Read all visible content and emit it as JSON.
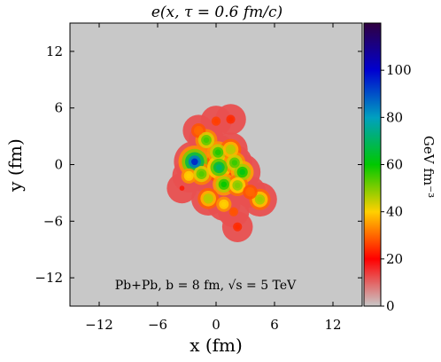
{
  "chart_data": {
    "type": "heatmap",
    "title": "e(x, τ = 0.6 fm/c)",
    "xlabel": "x (fm)",
    "ylabel": "y (fm)",
    "xlim": [
      -15,
      15
    ],
    "ylim": [
      -15,
      15
    ],
    "x_ticks": [
      "−12",
      "−6",
      "0",
      "6",
      "12"
    ],
    "y_ticks": [
      "12",
      "6",
      "0",
      "−6",
      "−12"
    ],
    "x_tick_values": [
      -12,
      -6,
      0,
      6,
      12
    ],
    "y_tick_values": [
      12,
      6,
      0,
      -6,
      -12
    ],
    "annotation": "Pb+Pb, b = 8 fm, √s = 5 TeV",
    "colorbar": {
      "label": "GeV fm⁻³",
      "range": [
        0,
        120
      ],
      "ticks": [
        "0",
        "20",
        "40",
        "60",
        "80",
        "100"
      ],
      "tick_values": [
        0,
        20,
        40,
        60,
        80,
        100
      ]
    },
    "background_color": "#c8c8c8",
    "colormap": [
      "#c8c8c8",
      "#ff0000",
      "#ffd000",
      "#00c800",
      "#00a0c0",
      "#0000d0",
      "#300040"
    ],
    "hotspots": [
      {
        "x": 0.0,
        "y": 4.6,
        "e": 26
      },
      {
        "x": 1.5,
        "y": 4.8,
        "e": 24
      },
      {
        "x": -1.8,
        "y": 3.6,
        "e": 30
      },
      {
        "x": -1.0,
        "y": 2.6,
        "e": 55
      },
      {
        "x": 0.2,
        "y": 1.3,
        "e": 58
      },
      {
        "x": 1.5,
        "y": 1.6,
        "e": 46
      },
      {
        "x": -2.2,
        "y": 0.3,
        "e": 96
      },
      {
        "x": -2.8,
        "y": -1.2,
        "e": 40
      },
      {
        "x": -1.5,
        "y": -1.0,
        "e": 54
      },
      {
        "x": 0.3,
        "y": -0.3,
        "e": 72
      },
      {
        "x": 1.9,
        "y": 0.2,
        "e": 56
      },
      {
        "x": 2.7,
        "y": -0.8,
        "e": 62
      },
      {
        "x": 0.8,
        "y": -2.1,
        "e": 60
      },
      {
        "x": 2.2,
        "y": -2.2,
        "e": 50
      },
      {
        "x": -0.8,
        "y": -3.6,
        "e": 46
      },
      {
        "x": 0.8,
        "y": -4.2,
        "e": 40
      },
      {
        "x": 1.8,
        "y": -5.0,
        "e": 28
      },
      {
        "x": 2.2,
        "y": -6.6,
        "e": 24
      },
      {
        "x": 4.5,
        "y": -3.7,
        "e": 48
      },
      {
        "x": 3.5,
        "y": -2.9,
        "e": 30
      },
      {
        "x": -3.5,
        "y": -2.5,
        "e": 22
      }
    ]
  }
}
